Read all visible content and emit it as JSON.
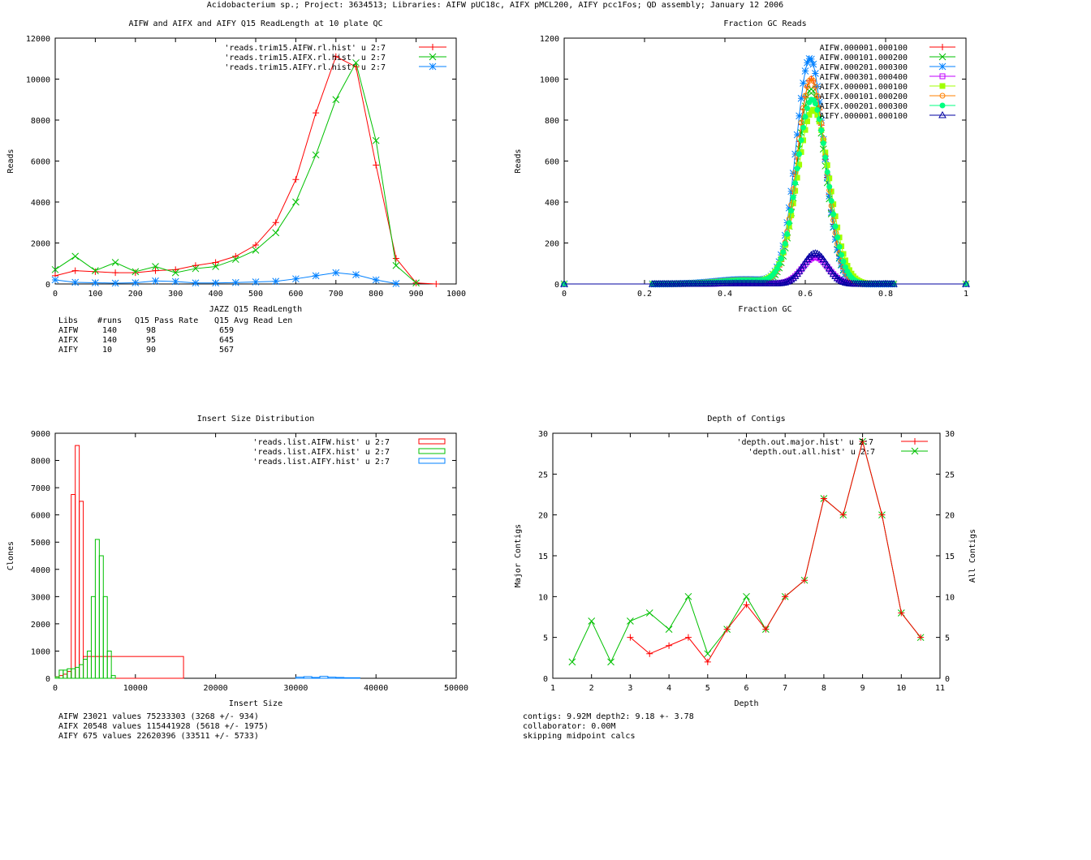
{
  "page_title": "Acidobacterium sp.; Project: 3634513; Libraries: AIFW pUC18c, AIFX pMCL200, AIFY pcc1Fos; QD assembly; January 12 2006",
  "colors": {
    "red": "#ff0000",
    "green": "#00c000",
    "blue": "#0080ff",
    "magenta": "#c000ff",
    "lime": "#a0ff00",
    "orange": "#ff8000",
    "cyan": "#00ff80",
    "navy": "#0000a0"
  },
  "chart_data": [
    {
      "type": "line",
      "title": "AIFW and AIFX and AIFY Q15 ReadLength at 10 plate QC",
      "xlabel": "JAZZ Q15 ReadLength",
      "ylabel": "Reads",
      "xlim": [
        0,
        1000
      ],
      "ylim": [
        0,
        12000
      ],
      "xticks": [
        0,
        100,
        200,
        300,
        400,
        500,
        600,
        700,
        800,
        900,
        1000
      ],
      "yticks": [
        0,
        2000,
        4000,
        6000,
        8000,
        10000,
        12000
      ],
      "series": [
        {
          "name": "'reads.trim15.AIFW.rl.hist' u 2:7",
          "color": "#ff0000",
          "marker": "plus",
          "x": [
            0,
            50,
            100,
            150,
            200,
            250,
            300,
            350,
            400,
            450,
            500,
            550,
            600,
            650,
            700,
            750,
            800,
            850,
            900,
            950
          ],
          "y": [
            400,
            650,
            600,
            550,
            550,
            650,
            700,
            900,
            1050,
            1350,
            1900,
            3000,
            5100,
            8350,
            11100,
            10600,
            5800,
            1250,
            50,
            0
          ]
        },
        {
          "name": "'reads.trim15.AIFX.rl.hist' u 2:7",
          "color": "#00c000",
          "marker": "cross",
          "x": [
            0,
            50,
            100,
            150,
            200,
            250,
            300,
            350,
            400,
            450,
            500,
            550,
            600,
            650,
            700,
            750,
            800,
            850,
            900
          ],
          "y": [
            700,
            1350,
            650,
            1050,
            600,
            850,
            550,
            750,
            850,
            1200,
            1650,
            2500,
            4000,
            6300,
            9000,
            10800,
            7000,
            900,
            50
          ]
        },
        {
          "name": "'reads.trim15.AIFY.rl.hist' u 2:7",
          "color": "#0080ff",
          "marker": "star",
          "x": [
            0,
            50,
            100,
            150,
            200,
            250,
            300,
            350,
            400,
            450,
            500,
            550,
            600,
            650,
            700,
            750,
            800,
            850
          ],
          "y": [
            200,
            80,
            60,
            40,
            60,
            150,
            120,
            50,
            50,
            70,
            100,
            130,
            250,
            400,
            550,
            450,
            200,
            20
          ]
        }
      ],
      "table": {
        "header": [
          "Libs",
          "#runs",
          "Q15 Pass Rate",
          "Q15 Avg Read Len"
        ],
        "rows": [
          [
            "AIFW",
            "140",
            "98",
            "659"
          ],
          [
            "AIFX",
            "140",
            "95",
            "645"
          ],
          [
            "AIFY",
            "10",
            "90",
            "567"
          ]
        ]
      }
    },
    {
      "type": "scatter",
      "title": "Fraction GC Reads",
      "xlabel": "Fraction GC",
      "ylabel": "Reads",
      "xlim": [
        0,
        1
      ],
      "ylim": [
        0,
        1200
      ],
      "xticks": [
        0,
        0.2,
        0.4,
        0.6,
        0.8,
        1
      ],
      "yticks": [
        0,
        200,
        400,
        600,
        800,
        1000,
        1200
      ],
      "series": [
        {
          "name": "AIFW.000001.000100",
          "color": "#ff0000",
          "marker": "plus",
          "mu": 0.615,
          "sigma": 0.035,
          "peak": 1000
        },
        {
          "name": "AIFW.000101.000200",
          "color": "#00c000",
          "marker": "cross",
          "mu": 0.615,
          "sigma": 0.035,
          "peak": 950
        },
        {
          "name": "AIFW.000201.000300",
          "color": "#0080ff",
          "marker": "star",
          "mu": 0.612,
          "sigma": 0.035,
          "peak": 1100
        },
        {
          "name": "AIFW.000301.000400",
          "color": "#c000ff",
          "marker": "box",
          "mu": 0.625,
          "sigma": 0.032,
          "peak": 130
        },
        {
          "name": "AIFX.000001.000100",
          "color": "#a0ff00",
          "marker": "fbox",
          "mu": 0.62,
          "sigma": 0.04,
          "peak": 850
        },
        {
          "name": "AIFX.000101.000200",
          "color": "#ff8000",
          "marker": "circle",
          "mu": 0.615,
          "sigma": 0.036,
          "peak": 1000
        },
        {
          "name": "AIFX.000201.000300",
          "color": "#00ff80",
          "marker": "fcircle",
          "mu": 0.617,
          "sigma": 0.038,
          "peak": 900
        },
        {
          "name": "AIFY.000001.000100",
          "color": "#0000a0",
          "marker": "triangle",
          "mu": 0.625,
          "sigma": 0.03,
          "peak": 150
        }
      ]
    },
    {
      "type": "histogram",
      "title": "Insert Size Distribution",
      "xlabel": "Insert Size",
      "ylabel": "Clones",
      "xlim": [
        0,
        50000
      ],
      "ylim": [
        0,
        9000
      ],
      "xticks": [
        0,
        10000,
        20000,
        30000,
        40000,
        50000
      ],
      "yticks": [
        0,
        1000,
        2000,
        3000,
        4000,
        5000,
        6000,
        7000,
        8000,
        9000
      ],
      "series": [
        {
          "name": "'reads.list.AIFW.hist' u 2:7",
          "color": "#ff0000",
          "bins": [
            [
              0,
              500,
              50
            ],
            [
              500,
              1000,
              100
            ],
            [
              1000,
              1500,
              150
            ],
            [
              1500,
              2000,
              250
            ],
            [
              2000,
              2500,
              6750
            ],
            [
              2500,
              3000,
              8550
            ],
            [
              3000,
              3500,
              6500
            ],
            [
              3500,
              4000,
              800
            ],
            [
              4000,
              16000,
              800
            ]
          ]
        },
        {
          "name": "'reads.list.AIFX.hist' u 2:7",
          "color": "#00c000",
          "bins": [
            [
              0,
              500,
              50
            ],
            [
              500,
              1000,
              300
            ],
            [
              1000,
              1500,
              300
            ],
            [
              1500,
              2000,
              350
            ],
            [
              2000,
              2500,
              350
            ],
            [
              2500,
              3000,
              400
            ],
            [
              3000,
              3500,
              500
            ],
            [
              3500,
              4000,
              700
            ],
            [
              4000,
              4500,
              1000
            ],
            [
              4500,
              5000,
              3000
            ],
            [
              5000,
              5500,
              5100
            ],
            [
              5500,
              6000,
              4500
            ],
            [
              6000,
              6500,
              3000
            ],
            [
              6500,
              7000,
              1000
            ],
            [
              7000,
              7500,
              100
            ]
          ]
        },
        {
          "name": "'reads.list.AIFY.hist' u 2:7",
          "color": "#0080ff",
          "bins": [
            [
              30000,
              31000,
              40
            ],
            [
              31000,
              32000,
              60
            ],
            [
              32000,
              33000,
              30
            ],
            [
              33000,
              34000,
              70
            ],
            [
              34000,
              35000,
              40
            ],
            [
              35000,
              36000,
              30
            ],
            [
              36000,
              38000,
              20
            ]
          ]
        }
      ],
      "stats": [
        "AIFW 23021 values 75233303 (3268 +/- 934)",
        "AIFX 20548 values 115441928 (5618 +/- 1975)",
        "AIFY 675 values 22620396 (33511 +/- 5733)"
      ]
    },
    {
      "type": "line",
      "title": "Depth of Contigs",
      "xlabel": "Depth",
      "ylabel": "Major Contigs",
      "y2label": "All Contigs",
      "xlim": [
        1,
        11
      ],
      "ylim": [
        0,
        30
      ],
      "xticks": [
        1,
        2,
        3,
        4,
        5,
        6,
        7,
        8,
        9,
        10,
        11
      ],
      "yticks": [
        0,
        5,
        10,
        15,
        20,
        25,
        30
      ],
      "series": [
        {
          "name": "'depth.out.major.hist' u 2:7",
          "color": "#ff0000",
          "marker": "plus",
          "x": [
            3,
            3.5,
            4,
            4.5,
            5,
            5.5,
            6,
            6.5,
            7,
            7.5,
            8,
            8.5,
            9,
            9.5,
            10,
            10.5
          ],
          "y": [
            5,
            3,
            4,
            5,
            2,
            6,
            9,
            6,
            10,
            12,
            22,
            20,
            29,
            20,
            8,
            5
          ]
        },
        {
          "name": "'depth.out.all.hist' u 2:7",
          "color": "#00c000",
          "marker": "cross",
          "x": [
            1.5,
            2,
            2.5,
            3,
            3.5,
            4,
            4.5,
            5,
            5.5,
            6,
            6.5,
            7,
            7.5,
            8,
            8.5,
            9,
            9.5,
            10,
            10.5
          ],
          "y": [
            2,
            7,
            2,
            7,
            8,
            6,
            10,
            3,
            6,
            10,
            6,
            10,
            12,
            22,
            20,
            29,
            20,
            8,
            5
          ]
        }
      ],
      "stats": [
        "contigs:      9.92M     depth2: 9.18 +- 3.78",
        "collaborator: 0.00M",
        "skipping midpoint calcs"
      ]
    }
  ]
}
